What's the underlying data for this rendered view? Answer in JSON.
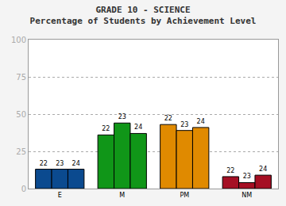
{
  "chart_data": {
    "type": "bar",
    "title": "GRADE 10 - SCIENCE",
    "subtitle": "Percentage of Students by Achievement Level",
    "categories": [
      "E",
      "M",
      "PM",
      "NM"
    ],
    "series": [
      {
        "name": "22",
        "values": [
          13,
          36,
          43,
          8
        ],
        "colors": [
          "#0b4a8f",
          "#109618",
          "#e08a00",
          "#a50f24"
        ]
      },
      {
        "name": "23",
        "values": [
          13,
          44,
          39,
          4
        ],
        "colors": [
          "#0b4a8f",
          "#109618",
          "#e08a00",
          "#a50f24"
        ]
      },
      {
        "name": "24",
        "values": [
          13,
          37,
          41,
          9
        ],
        "colors": [
          "#0b4a8f",
          "#109618",
          "#e08a00",
          "#a50f24"
        ]
      }
    ],
    "ylim": [
      0,
      100
    ],
    "yticks": [
      0,
      25,
      50,
      75,
      100
    ],
    "grid": true
  }
}
